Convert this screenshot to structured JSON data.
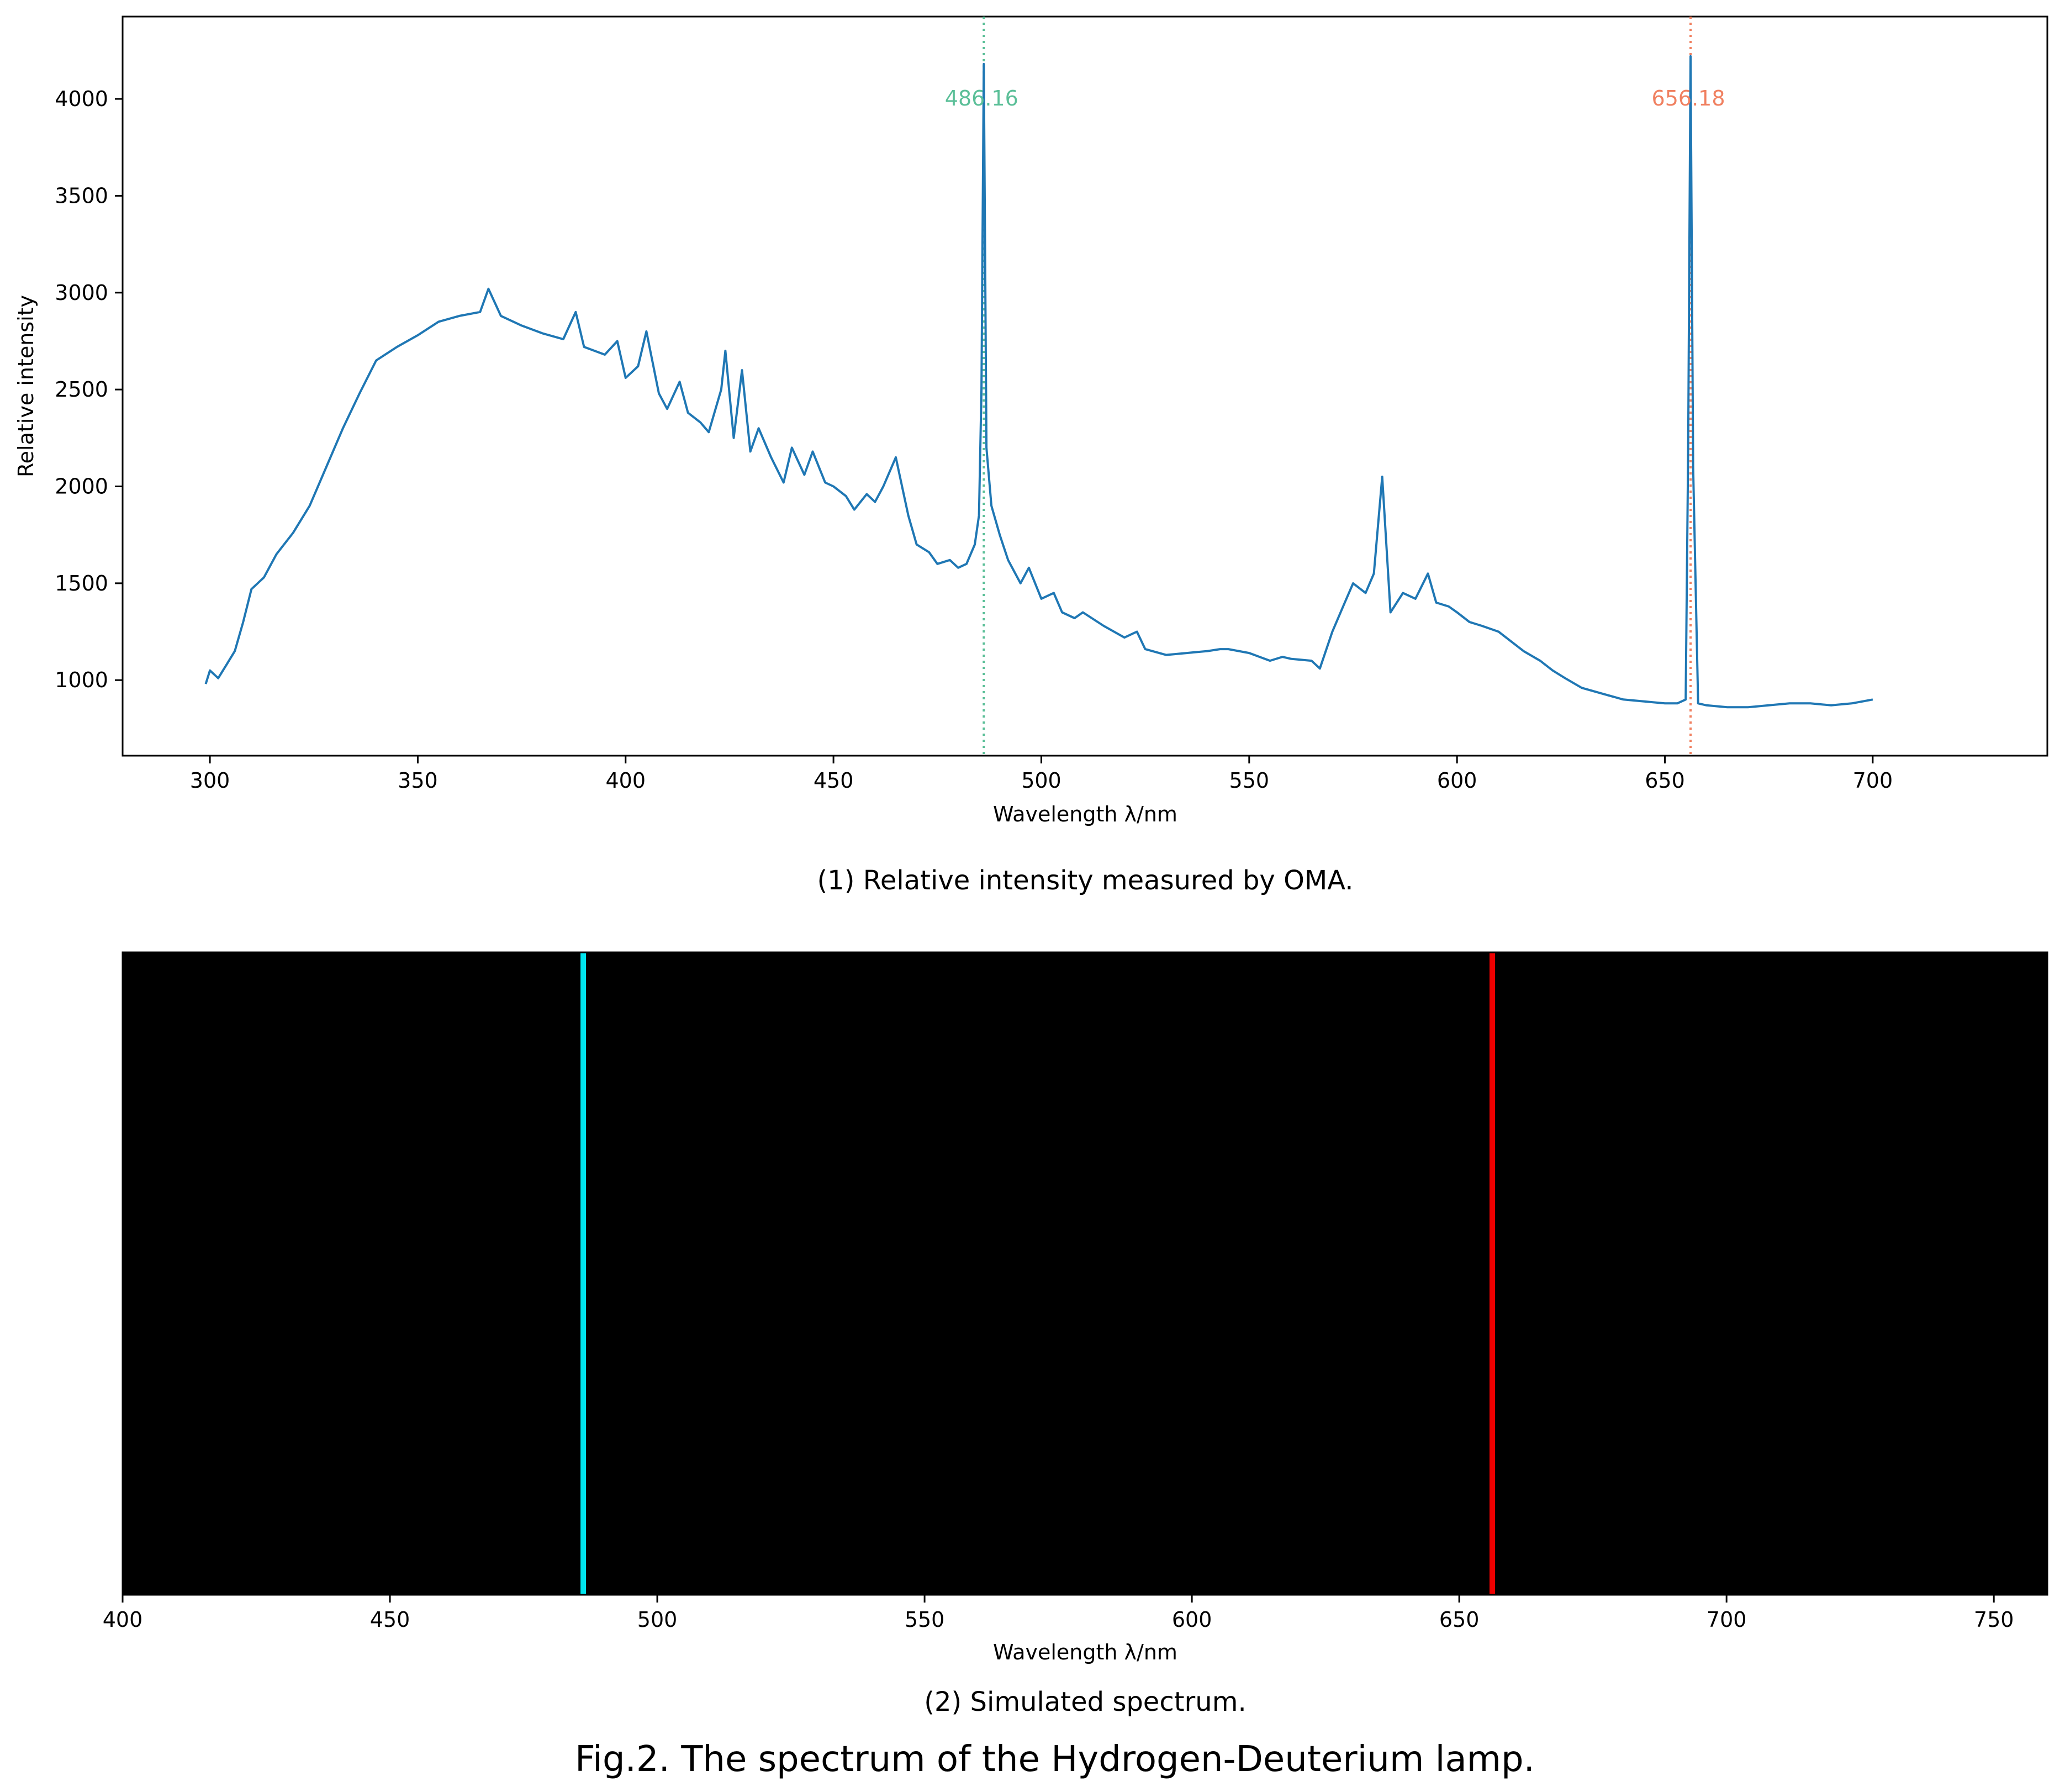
{
  "figure": {
    "title": "Fig.2. The spectrum of the Hydrogen-Deuterium lamp."
  },
  "chart_data": [
    {
      "type": "line",
      "caption": "(1) Relative intensity measured by OMA.",
      "xlabel": "Wavelength λ/nm",
      "ylabel": "Relative intensity",
      "xlim": [
        279,
        742
      ],
      "ylim": [
        610,
        4425
      ],
      "xticks": [
        300,
        350,
        400,
        450,
        500,
        550,
        600,
        650,
        700
      ],
      "yticks": [
        1000,
        1500,
        2000,
        2500,
        3000,
        3500,
        4000
      ],
      "grid": false,
      "line_color": "#1f77b4",
      "series": [
        {
          "x": [
            299,
            300,
            302,
            304,
            306,
            308,
            310,
            313,
            316,
            320,
            324,
            328,
            332,
            336,
            340,
            345,
            350,
            355,
            360,
            365,
            367,
            370,
            375,
            380,
            385,
            388,
            390,
            395,
            398,
            400,
            403,
            405,
            408,
            410,
            413,
            415,
            418,
            420,
            423,
            424,
            426,
            428,
            430,
            432,
            435,
            438,
            440,
            443,
            445,
            448,
            450,
            453,
            455,
            458,
            460,
            462,
            465,
            468,
            470,
            473,
            475,
            478,
            480,
            482,
            484,
            485,
            485.6,
            486.16,
            486.8,
            488,
            490,
            492,
            495,
            497,
            500,
            503,
            505,
            508,
            510,
            515,
            520,
            523,
            525,
            530,
            535,
            540,
            543,
            545,
            550,
            555,
            558,
            560,
            565,
            567,
            570,
            573,
            575,
            578,
            580,
            582,
            584,
            587,
            590,
            593,
            595,
            598,
            600,
            603,
            606,
            610,
            613,
            616,
            620,
            623,
            626,
            630,
            635,
            640,
            645,
            650,
            653,
            655,
            655.6,
            656.18,
            656.8,
            658,
            660,
            665,
            670,
            675,
            680,
            685,
            690,
            695,
            700
          ],
          "y": [
            980,
            1050,
            1010,
            1080,
            1150,
            1300,
            1470,
            1530,
            1650,
            1760,
            1900,
            2100,
            2300,
            2480,
            2650,
            2720,
            2780,
            2850,
            2880,
            2900,
            3020,
            2880,
            2830,
            2790,
            2760,
            2900,
            2720,
            2680,
            2750,
            2560,
            2620,
            2800,
            2480,
            2400,
            2540,
            2380,
            2330,
            2280,
            2500,
            2700,
            2250,
            2600,
            2180,
            2300,
            2150,
            2020,
            2200,
            2060,
            2180,
            2020,
            2000,
            1950,
            1880,
            1960,
            1920,
            2000,
            2150,
            1850,
            1700,
            1660,
            1600,
            1620,
            1580,
            1600,
            1700,
            1850,
            2500,
            4180,
            2200,
            1900,
            1750,
            1620,
            1500,
            1580,
            1420,
            1450,
            1350,
            1320,
            1350,
            1280,
            1220,
            1250,
            1160,
            1130,
            1140,
            1150,
            1160,
            1160,
            1140,
            1100,
            1120,
            1110,
            1100,
            1060,
            1250,
            1400,
            1500,
            1450,
            1550,
            2050,
            1350,
            1450,
            1420,
            1550,
            1400,
            1380,
            1350,
            1300,
            1280,
            1250,
            1200,
            1150,
            1100,
            1050,
            1010,
            960,
            930,
            900,
            890,
            880,
            880,
            900,
            2200,
            4220,
            2100,
            880,
            870,
            860,
            860,
            870,
            880,
            880,
            870,
            880,
            900
          ]
        }
      ],
      "annotations": [
        {
          "x": 486.16,
          "label": "486.16",
          "color": "#5bbf98"
        },
        {
          "x": 656.18,
          "label": "656.18",
          "color": "#f08060"
        }
      ]
    },
    {
      "type": "spectrum",
      "caption": "(2) Simulated spectrum.",
      "xlabel": "Wavelength λ/nm",
      "xlim": [
        400,
        760
      ],
      "xticks": [
        400,
        450,
        500,
        550,
        600,
        650,
        700,
        750
      ],
      "background": "#000000",
      "lines": [
        {
          "x": 486.16,
          "color": "#00e5ee"
        },
        {
          "x": 656.18,
          "color": "#ee0000"
        }
      ]
    }
  ]
}
